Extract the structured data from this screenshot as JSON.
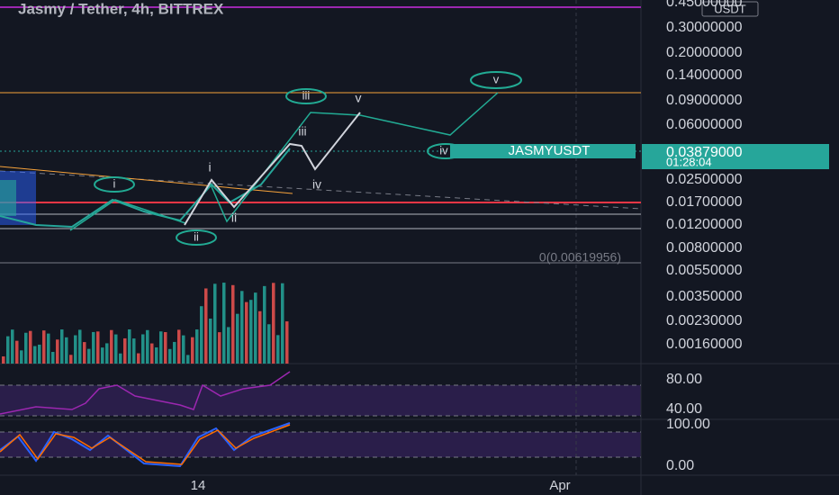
{
  "header": {
    "title": "Jasmy / Tether, 4h, BITTREX"
  },
  "price_axis": {
    "currency": "USDT",
    "labels": [
      "0.45000000",
      "0.30000000",
      "0.20000000",
      "0.14000000",
      "0.09000000",
      "0.06000000",
      "0.02500000",
      "0.01700000",
      "0.01200000",
      "0.00800000",
      "0.00550000",
      "0.00350000",
      "0.00230000",
      "0.00160000"
    ]
  },
  "last_price": {
    "symbol": "JASMYUSDT",
    "price": "0.03879000",
    "countdown": "01:28:04"
  },
  "circled_waves": [
    "i",
    "ii",
    "iii",
    "iv",
    "v"
  ],
  "plain_waves": [
    "i",
    "ii",
    "iii",
    "iv",
    "v"
  ],
  "fib_label": "0(0.00619956)",
  "rsi_axis": [
    "80.00",
    "40.00"
  ],
  "stoch_axis": [
    "100.00",
    "0.00"
  ],
  "time_axis": [
    "14",
    "Apr"
  ]
}
